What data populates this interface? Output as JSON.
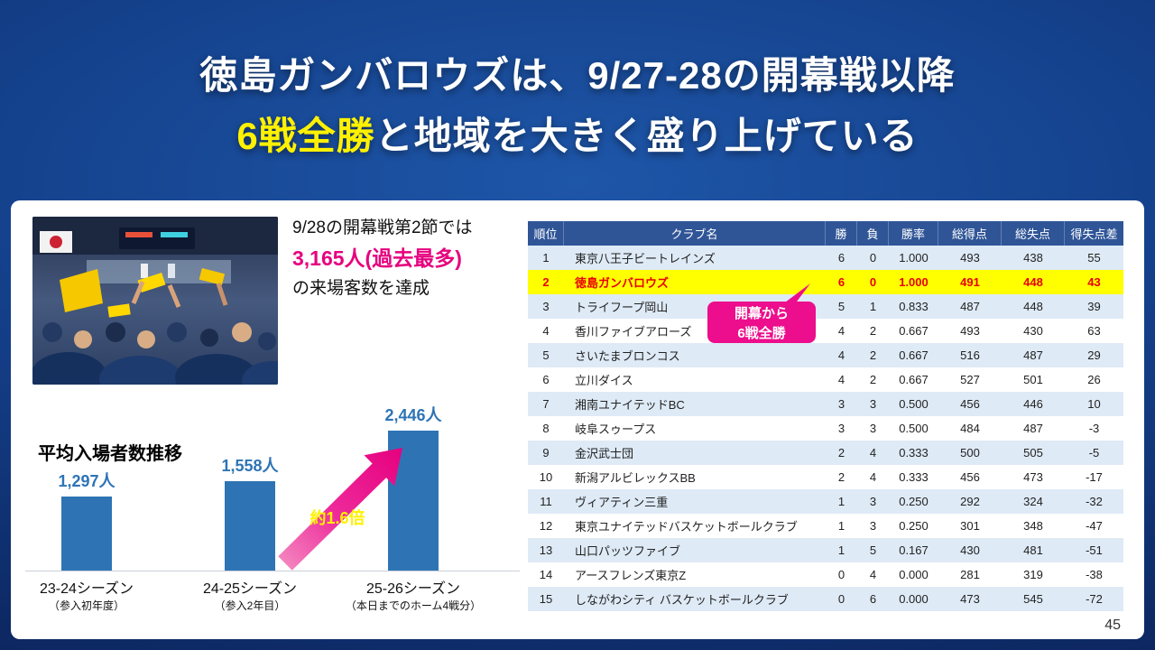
{
  "slide": {
    "page_number": "45"
  },
  "title": {
    "line1": "徳島ガンバロウズは、9/27-28の開幕戦以降",
    "line2_highlight": "6戦全勝",
    "line2_rest": "と地域を大きく盛り上げている"
  },
  "attendance_note": {
    "line1": "9/28の開幕戦第2節では",
    "highlight": "3,165人(過去最多)",
    "line3": "の来場客数を達成"
  },
  "chart_data": {
    "type": "bar",
    "title": "平均入場者数推移",
    "categories": [
      "23-24シーズン",
      "24-25シーズン",
      "25-26シーズン"
    ],
    "category_notes": [
      "（参入初年度）",
      "（参入2年目）",
      "（本日までのホーム4戦分）"
    ],
    "values": [
      1297,
      1558,
      2446
    ],
    "value_labels": [
      "1,297人",
      "1,558人",
      "2,446人"
    ],
    "ylim": [
      0,
      2600
    ],
    "annotation": "約1.6倍",
    "bar_color": "#2E74B5",
    "label_color": "#2E74B5",
    "legend": "none",
    "grid": "off"
  },
  "standings": {
    "headers": [
      "順位",
      "クラブ名",
      "勝",
      "負",
      "勝率",
      "総得点",
      "総失点",
      "得失点差"
    ],
    "rows": [
      [
        "1",
        "東京八王子ビートレインズ",
        "6",
        "0",
        "1.000",
        "493",
        "438",
        "55"
      ],
      [
        "2",
        "徳島ガンバロウズ",
        "6",
        "0",
        "1.000",
        "491",
        "448",
        "43"
      ],
      [
        "3",
        "トライフープ岡山",
        "5",
        "1",
        "0.833",
        "487",
        "448",
        "39"
      ],
      [
        "4",
        "香川ファイブアローズ",
        "4",
        "2",
        "0.667",
        "493",
        "430",
        "63"
      ],
      [
        "5",
        "さいたまブロンコス",
        "4",
        "2",
        "0.667",
        "516",
        "487",
        "29"
      ],
      [
        "6",
        "立川ダイス",
        "4",
        "2",
        "0.667",
        "527",
        "501",
        "26"
      ],
      [
        "7",
        "湘南ユナイテッドBC",
        "3",
        "3",
        "0.500",
        "456",
        "446",
        "10"
      ],
      [
        "8",
        "岐阜スゥープス",
        "3",
        "3",
        "0.500",
        "484",
        "487",
        "-3"
      ],
      [
        "9",
        "金沢武士団",
        "2",
        "4",
        "0.333",
        "500",
        "505",
        "-5"
      ],
      [
        "10",
        "新潟アルビレックスBB",
        "2",
        "4",
        "0.333",
        "456",
        "473",
        "-17"
      ],
      [
        "11",
        "ヴィアティン三重",
        "1",
        "3",
        "0.250",
        "292",
        "324",
        "-32"
      ],
      [
        "12",
        "東京ユナイテッドバスケットボールクラブ",
        "1",
        "3",
        "0.250",
        "301",
        "348",
        "-47"
      ],
      [
        "13",
        "山口パッツファイブ",
        "1",
        "5",
        "0.167",
        "430",
        "481",
        "-51"
      ],
      [
        "14",
        "アースフレンズ東京Z",
        "0",
        "4",
        "0.000",
        "281",
        "319",
        "-38"
      ],
      [
        "15",
        "しながわシティ バスケットボールクラブ",
        "0",
        "6",
        "0.000",
        "473",
        "545",
        "-72"
      ]
    ],
    "highlight_row": 2
  },
  "callout": {
    "line1": "開幕から",
    "line2": "6戦全勝"
  },
  "colors": {
    "title_highlight": "#FFF100",
    "accent_pink": "#E6007E",
    "callout_pink": "#EC0E8C",
    "table_header_bg": "#2F5597",
    "table_alt_row": "#DEEAF6",
    "highlight_row_bg": "#FFFF00",
    "highlight_row_text": "#E80000",
    "bar_blue": "#2E74B5"
  }
}
